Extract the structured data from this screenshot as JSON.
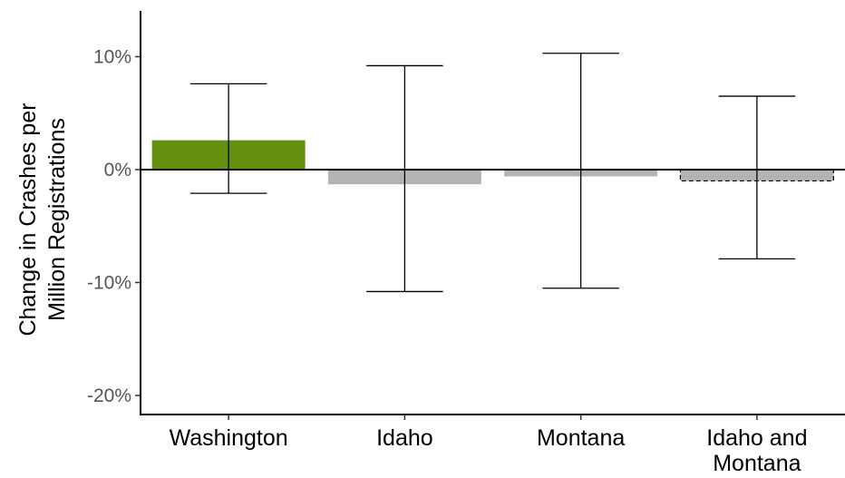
{
  "chart_data": {
    "type": "bar",
    "title": "",
    "ylabel_lines": [
      "Change in Crashes per",
      "Million Registrations"
    ],
    "xlabel": "",
    "ylim": [
      -22,
      14
    ],
    "yticks": [
      {
        "value": 10,
        "label": "10%"
      },
      {
        "value": 0,
        "label": "0%"
      },
      {
        "value": -10,
        "label": "-10%"
      },
      {
        "value": -20,
        "label": "-20%"
      }
    ],
    "categories": [
      {
        "lines": [
          "Washington"
        ]
      },
      {
        "lines": [
          "Idaho"
        ]
      },
      {
        "lines": [
          "Montana"
        ]
      },
      {
        "lines": [
          "Idaho and",
          "Montana"
        ]
      }
    ],
    "values": [
      2.6,
      -1.3,
      -0.6,
      -1.0
    ],
    "error_low": [
      -2.1,
      -10.8,
      -10.5,
      -7.9
    ],
    "error_high": [
      7.6,
      9.2,
      10.3,
      6.5
    ],
    "bar_colors": [
      "#64900e",
      "#b4b4b4",
      "#b4b4b4",
      "#b4b4b4"
    ],
    "bar_dashed_outline": [
      false,
      false,
      false,
      true
    ],
    "grid": false,
    "legend": "none"
  }
}
